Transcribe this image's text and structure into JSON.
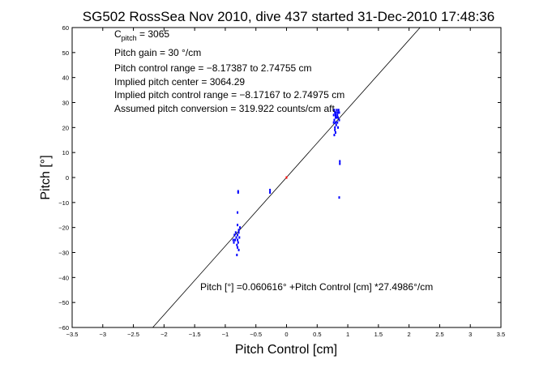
{
  "chart_data": {
    "type": "scatter",
    "title": "SG502 RossSea Nov 2010, dive 437 started 31-Dec-2010 17:48:36",
    "xlabel": "Pitch Control [cm]",
    "ylabel": "Pitch [°]",
    "xlim": [
      -3.5,
      3.5
    ],
    "ylim": [
      -60,
      60
    ],
    "xticks": [
      "−3.5",
      "−3",
      "−2.5",
      "−2",
      "−1.5",
      "−1",
      "−0.5",
      "0",
      "0.5",
      "1",
      "1.5",
      "2",
      "2.5",
      "3",
      "3.5"
    ],
    "xtick_values": [
      -3.5,
      -3,
      -2.5,
      -2,
      -1.5,
      -1,
      -0.5,
      0,
      0.5,
      1,
      1.5,
      2,
      2.5,
      3,
      3.5
    ],
    "yticks": [
      "−60",
      "−50",
      "−40",
      "−30",
      "−20",
      "−10",
      "0",
      "10",
      "20",
      "30",
      "40",
      "50",
      "60"
    ],
    "ytick_values": [
      -60,
      -50,
      -40,
      -30,
      -20,
      -10,
      0,
      10,
      20,
      30,
      40,
      50,
      60
    ],
    "grid": false,
    "fit": {
      "intercept": 0.060616,
      "slope": 27.4986
    },
    "annotations": {
      "c_pitch_main": "C",
      "c_pitch_sub": "pitch",
      "c_pitch_val": " = 3065",
      "line2": "Pitch gain = 30 °/cm",
      "line3": "Pitch control range = −8.17387 to 2.74755 cm",
      "line4": "Implied pitch center = 3064.29",
      "line5": "Implied pitch control range = −8.17167 to 2.74975 cm",
      "line6": "Assumed pitch conversion = 319.922 counts/cm aft",
      "fit_label": "Pitch [°] =0.060616° +Pitch Control [cm] *27.4986°/cm"
    },
    "series": [
      {
        "color": "#0000ff",
        "points": [
          [
            0.78,
            27
          ],
          [
            0.79,
            26
          ],
          [
            0.8,
            25
          ],
          [
            0.8,
            24
          ],
          [
            0.81,
            26
          ],
          [
            0.82,
            27
          ],
          [
            0.83,
            25
          ],
          [
            0.84,
            26
          ],
          [
            0.85,
            27
          ],
          [
            0.78,
            23
          ],
          [
            0.8,
            22
          ],
          [
            0.81,
            21
          ],
          [
            0.79,
            20
          ],
          [
            0.8,
            18
          ],
          [
            0.78,
            17
          ],
          [
            0.82,
            24
          ],
          [
            0.84,
            24
          ],
          [
            0.86,
            26
          ],
          [
            0.86,
            23
          ],
          [
            0.77,
            25
          ],
          [
            0.77,
            22
          ],
          [
            0.79,
            19
          ],
          [
            0.83,
            22
          ],
          [
            0.84,
            20
          ],
          [
            0.87,
            5.5
          ],
          [
            0.87,
            6.5
          ],
          [
            0.86,
            -8
          ],
          [
            -0.78,
            -22
          ],
          [
            -0.8,
            -23
          ],
          [
            -0.82,
            -24
          ],
          [
            -0.84,
            -25
          ],
          [
            -0.86,
            -26
          ],
          [
            -0.8,
            -25
          ],
          [
            -0.78,
            -21
          ],
          [
            -0.76,
            -20
          ],
          [
            -0.79,
            -26
          ],
          [
            -0.83,
            -22
          ],
          [
            -0.81,
            -27
          ],
          [
            -0.77,
            -24
          ],
          [
            -0.85,
            -23
          ],
          [
            -0.87,
            -25
          ],
          [
            -0.8,
            -28
          ],
          [
            -0.78,
            -29
          ],
          [
            -0.81,
            -31
          ],
          [
            -0.79,
            -6
          ],
          [
            -0.79,
            -5.5
          ],
          [
            -0.8,
            -14
          ],
          [
            -0.8,
            -19
          ],
          [
            -0.27,
            -5
          ],
          [
            -0.27,
            -6
          ]
        ]
      },
      {
        "color": "#ff0000",
        "points": [
          [
            0,
            0
          ]
        ]
      }
    ]
  }
}
